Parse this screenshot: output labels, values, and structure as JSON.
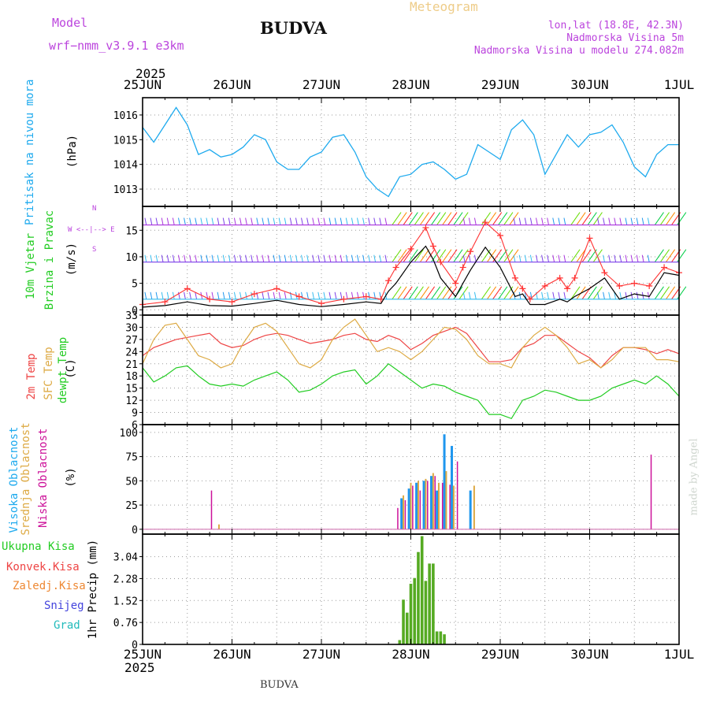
{
  "header": {
    "model_label": "Model",
    "model_name": "wrf−nmm_v3.9.1  e3km",
    "station": "BUDVA",
    "meteogram": "Meteogram",
    "lonlat": "lon,lat (18.8E, 42.3N)",
    "elevation": "Nadmorska Visina 5m",
    "model_elevation": "Nadmorska Visina u modelu 274.082m",
    "year_top": "2025",
    "year_bottom": "2025",
    "footer_station": "BUDVA",
    "watermark": "made by Angel"
  },
  "colors": {
    "pressure": "#1eaaee",
    "temp2m": "#ee4444",
    "sfc": "#ddaa44",
    "dew": "#22cc22",
    "high": "#1e96ee",
    "mid": "#ddaa44",
    "low": "#cc1199",
    "wind_speed": "#000000",
    "gust": "#ff3333",
    "precip": "#55aa22",
    "purple": "#bb44dd"
  },
  "panel_labels": {
    "pressure": [
      "Pritisak na nivou mora",
      "(hPa)"
    ],
    "wind": [
      "10m Vjetar",
      "Brzina i Pravac",
      "(m/s)"
    ],
    "wind_compass": [
      "N",
      "W <--|--> E",
      "S"
    ],
    "temp": [
      "2m Temp",
      "SFC Temp",
      "dewpt Temp",
      "(C)"
    ],
    "cloud": [
      "Visoka Oblacnost",
      "Srednja Oblacnost",
      "Niska Oblacnost",
      "(%)"
    ],
    "precip_legend": [
      "Ukupna Kisa",
      "Konvek.Kisa",
      "Zaledj.Kisa",
      "Snijeg",
      "Grad"
    ],
    "precip_unit": "1hr Precip (mm)"
  },
  "chart_data": {
    "type": "meteogram",
    "x_ticks": [
      "25JUN",
      "26JUN",
      "27JUN",
      "28JUN",
      "29JUN",
      "30JUN",
      "1JUL"
    ],
    "time_unit": "hours from 2025-06-25 00 UTC",
    "panels": [
      {
        "name": "pressure",
        "type": "line",
        "ylabel": "(hPa)",
        "ylim": [
          1012.3,
          1016.7
        ],
        "yticks": [
          1013,
          1014,
          1015,
          1016
        ],
        "x": [
          0,
          3,
          6,
          9,
          12,
          15,
          18,
          21,
          24,
          27,
          30,
          33,
          36,
          39,
          42,
          45,
          48,
          51,
          54,
          57,
          60,
          63,
          66,
          69,
          72,
          75,
          78,
          81,
          84,
          87,
          90,
          93,
          96,
          99,
          102,
          105,
          108,
          111,
          114,
          117,
          120,
          123,
          126,
          129,
          132,
          135,
          138,
          141,
          144
        ],
        "values": [
          1015.5,
          1014.9,
          1015.6,
          1016.3,
          1015.6,
          1014.4,
          1014.6,
          1014.3,
          1014.4,
          1014.7,
          1015.2,
          1015.0,
          1014.1,
          1013.8,
          1013.8,
          1014.3,
          1014.5,
          1015.1,
          1015.2,
          1014.5,
          1013.5,
          1013.0,
          1012.7,
          1013.5,
          1013.6,
          1014.0,
          1014.1,
          1013.8,
          1013.4,
          1013.6,
          1014.8,
          1014.5,
          1014.2,
          1015.4,
          1015.8,
          1015.2,
          1013.6,
          1014.4,
          1015.2,
          1014.7,
          1015.2,
          1015.3,
          1015.6,
          1014.9,
          1013.9,
          1013.5,
          1014.4,
          1014.8,
          1014.8
        ]
      },
      {
        "name": "wind",
        "type": "line",
        "ylabel": "(m/s)",
        "ylim": [
          -1,
          19.5
        ],
        "yticks": [
          0,
          5,
          10,
          15
        ],
        "x": [
          0,
          6,
          12,
          18,
          24,
          30,
          36,
          42,
          48,
          54,
          60,
          64,
          66,
          68,
          72,
          76,
          78,
          80,
          84,
          86,
          88,
          92,
          96,
          100,
          102,
          104,
          108,
          112,
          114,
          116,
          120,
          124,
          128,
          132,
          136,
          140,
          144
        ],
        "speed": [
          0.5,
          0.8,
          1.5,
          0.8,
          0.7,
          1.2,
          1.8,
          1.0,
          0.6,
          1.0,
          1.5,
          1.2,
          3.5,
          5.0,
          9.0,
          12.0,
          9.5,
          6.0,
          2.5,
          5.0,
          7.5,
          11.8,
          8.0,
          2.5,
          3.0,
          1.0,
          1.0,
          2.0,
          1.5,
          2.5,
          4.0,
          6.0,
          2.0,
          3.0,
          2.5,
          7.0,
          6.5
        ],
        "gust": [
          1.0,
          1.5,
          4.0,
          2.0,
          1.5,
          3.0,
          4.0,
          2.5,
          1.2,
          2.0,
          2.5,
          2.0,
          5.5,
          8.0,
          11.5,
          15.5,
          12.0,
          9.0,
          5.0,
          8.0,
          11.0,
          16.5,
          14.0,
          6.0,
          4.0,
          2.0,
          4.5,
          6.0,
          4.0,
          6.0,
          13.5,
          7.0,
          4.5,
          5.0,
          4.5,
          8.0,
          7.0
        ],
        "barb_levels_ms": [
          2,
          9,
          16
        ]
      },
      {
        "name": "temperature",
        "type": "line",
        "ylabel": "(C)",
        "ylim": [
          6,
          33
        ],
        "yticks": [
          6,
          9,
          12,
          15,
          18,
          21,
          24,
          27,
          30,
          33
        ],
        "x": [
          0,
          3,
          6,
          9,
          12,
          15,
          18,
          21,
          24,
          27,
          30,
          33,
          36,
          39,
          42,
          45,
          48,
          51,
          54,
          57,
          60,
          63,
          66,
          69,
          72,
          75,
          78,
          81,
          84,
          87,
          90,
          93,
          96,
          99,
          102,
          105,
          108,
          111,
          114,
          117,
          120,
          123,
          126,
          129,
          132,
          135,
          138,
          141,
          144
        ],
        "series": [
          {
            "name": "2m Temp",
            "values": [
              23,
              25,
              26,
              27,
              27.5,
              28,
              28.5,
              26,
              25,
              25.5,
              27,
              28,
              28.5,
              28,
              27,
              26,
              26.5,
              27,
              28,
              28.5,
              27,
              26.5,
              28,
              27,
              24.5,
              26,
              28,
              29,
              30,
              28.5,
              25,
              21.5,
              21.5,
              22,
              25,
              26,
              28,
              28,
              26,
              24,
              22.5,
              20,
              23,
              25,
              25,
              24.5,
              23.5,
              24.5,
              23.5
            ]
          },
          {
            "name": "SFC Temp",
            "values": [
              21,
              27,
              30.5,
              31,
              27,
              23,
              22,
              20,
              21,
              26,
              30,
              31,
              29,
              25,
              21,
              20,
              22,
              27,
              30,
              32,
              28,
              24,
              25,
              24,
              22,
              24,
              27,
              30,
              29.5,
              27,
              23,
              21,
              21,
              20,
              25,
              28,
              30,
              28,
              25,
              21,
              22,
              20,
              22,
              25,
              25,
              25,
              22,
              22,
              21.5
            ]
          },
          {
            "name": "dewpt Temp",
            "values": [
              20,
              16.5,
              18,
              20,
              20.5,
              18,
              16,
              15.5,
              16,
              15.5,
              17,
              18,
              19,
              17,
              14,
              14.5,
              16,
              18,
              19,
              19.5,
              16,
              18,
              21,
              19,
              17,
              15,
              16,
              15.5,
              14,
              13,
              12,
              8.5,
              8.5,
              7.5,
              12,
              13,
              14.5,
              14,
              13,
              12,
              12,
              13,
              15,
              16,
              17,
              16,
              18,
              16,
              13
            ]
          }
        ]
      },
      {
        "name": "cloud",
        "type": "bar",
        "ylabel": "(%)",
        "ylim": [
          -5,
          108
        ],
        "yticks": [
          0,
          25,
          50,
          75,
          100
        ],
        "series": [
          {
            "name": "Visoka Oblacnost",
            "x": [
              69.5,
              71.5,
              73.5,
              75.5,
              77.5,
              79,
              81,
              83,
              88
            ],
            "values": [
              32,
              42,
              48,
              50,
              55,
              40,
              98,
              86,
              40
            ]
          },
          {
            "name": "Srednja Oblacnost",
            "x": [
              20.5,
              70,
              72,
              74,
              76,
              78,
              79.5,
              81.5,
              83.5,
              89
            ],
            "values": [
              5,
              35,
              48,
              50,
              52,
              58,
              48,
              60,
              45,
              45
            ]
          },
          {
            "name": "Niska Oblacnost",
            "x": [
              18.5,
              68.5,
              70.5,
              72.5,
              74.5,
              76.5,
              78.5,
              80.5,
              82.5,
              84.5,
              136.5
            ],
            "values": [
              40,
              22,
              30,
              45,
              40,
              50,
              55,
              48,
              46,
              70,
              77
            ]
          }
        ]
      },
      {
        "name": "precipitation",
        "type": "bar",
        "ylabel": "1hr Precip (mm)",
        "ylim": [
          0,
          3.82
        ],
        "yticks": [
          0,
          0.76,
          1.52,
          2.28,
          3.04
        ],
        "x": [
          69,
          70,
          71,
          72,
          73,
          74,
          75,
          76,
          77,
          78,
          79,
          80,
          81
        ],
        "values": [
          0.15,
          1.55,
          1.1,
          2.1,
          2.3,
          3.2,
          3.75,
          2.2,
          2.8,
          2.8,
          0.45,
          0.45,
          0.35
        ]
      }
    ]
  }
}
